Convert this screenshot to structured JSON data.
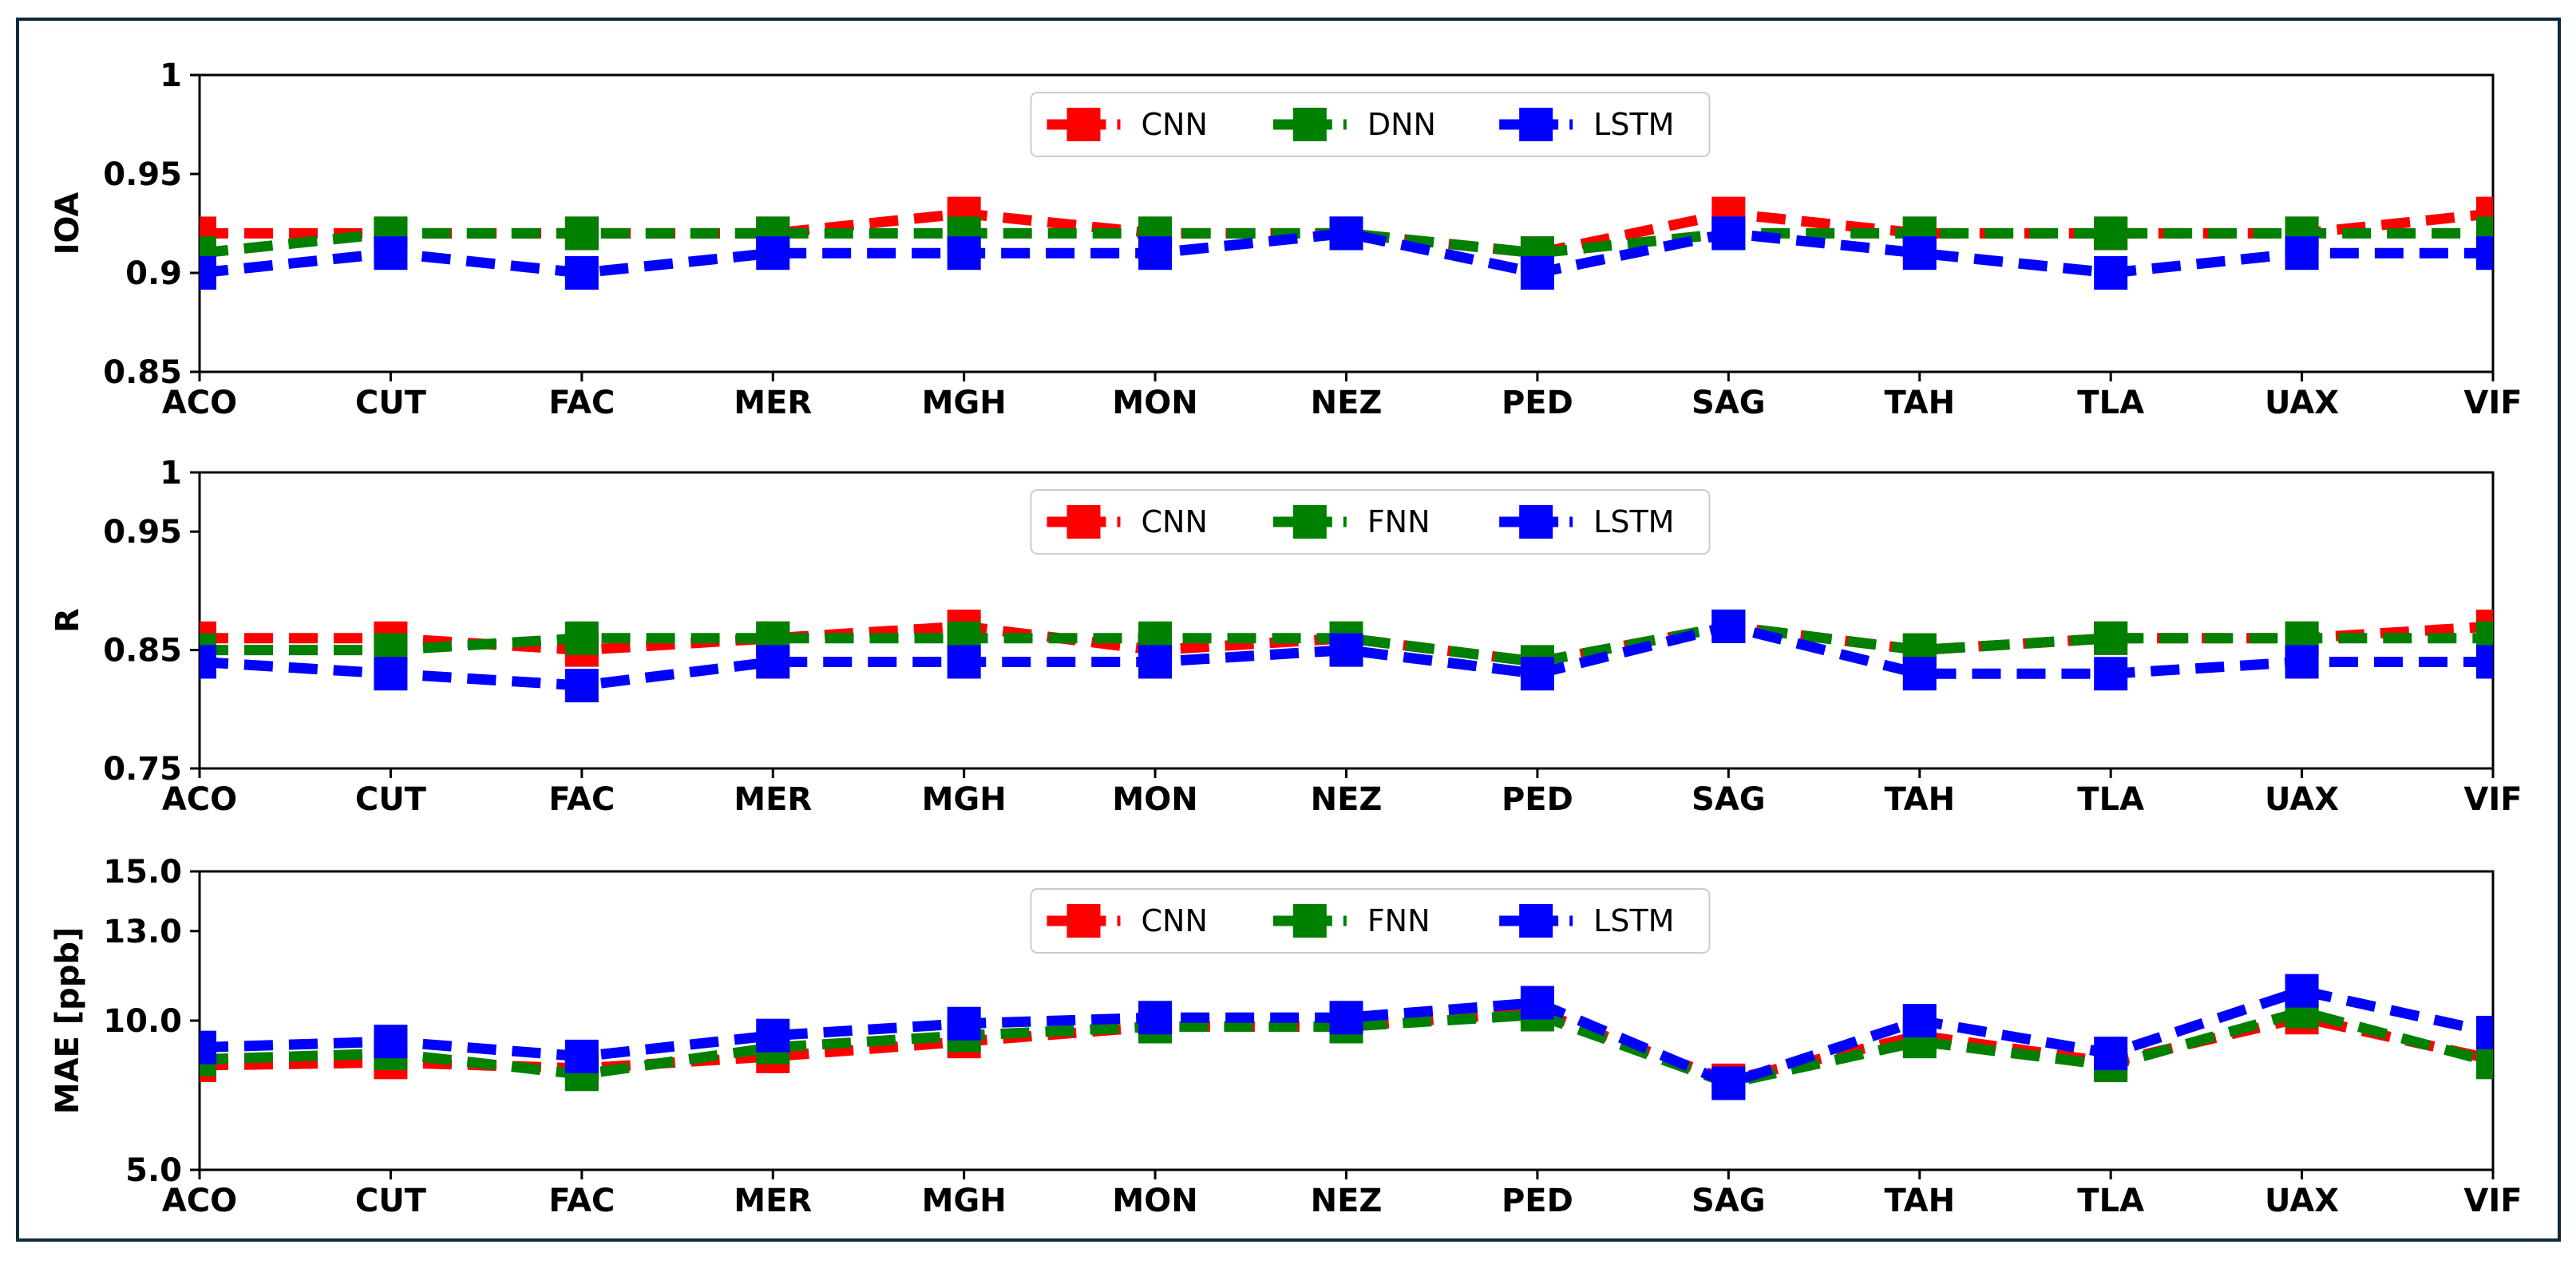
{
  "figure": {
    "border_color": "#0d2a3a",
    "colors": {
      "CNN": "#ff0000",
      "DNN": "#008000",
      "FNN": "#008000",
      "LSTM": "#0000ff"
    }
  },
  "chart_data": [
    {
      "type": "line",
      "ylabel": "IOA",
      "ylim": [
        0.85,
        1
      ],
      "y_scale": "linear",
      "yticks": [
        "0.85",
        "0.9",
        "0.95",
        "1"
      ],
      "ytick_values": [
        0.85,
        0.9,
        0.95,
        1
      ],
      "categories": [
        "ACO",
        "CUT",
        "FAC",
        "MER",
        "MGH",
        "MON",
        "NEZ",
        "PED",
        "SAG",
        "TAH",
        "TLA",
        "UAX",
        "VIF"
      ],
      "legend_position": "top-center",
      "grid": false,
      "series": [
        {
          "name": "CNN",
          "color": "#ff0000",
          "values": [
            0.92,
            0.92,
            0.92,
            0.92,
            0.93,
            0.92,
            0.92,
            0.91,
            0.93,
            0.92,
            0.92,
            0.92,
            0.93
          ]
        },
        {
          "name": "DNN",
          "color": "#008000",
          "values": [
            0.91,
            0.92,
            0.92,
            0.92,
            0.92,
            0.92,
            0.92,
            0.91,
            0.92,
            0.92,
            0.92,
            0.92,
            0.92
          ]
        },
        {
          "name": "LSTM",
          "color": "#0000ff",
          "values": [
            0.9,
            0.91,
            0.9,
            0.91,
            0.91,
            0.91,
            0.92,
            0.9,
            0.92,
            0.91,
            0.9,
            0.91,
            0.91
          ]
        }
      ]
    },
    {
      "type": "line",
      "ylabel": "R",
      "ylim": [
        0.75,
        1
      ],
      "y_scale": "linear",
      "yticks": [
        "0.75",
        "0.85",
        "0.95",
        "1"
      ],
      "ytick_values": [
        0.75,
        0.85,
        0.95,
        1
      ],
      "categories": [
        "ACO",
        "CUT",
        "FAC",
        "MER",
        "MGH",
        "MON",
        "NEZ",
        "PED",
        "SAG",
        "TAH",
        "TLA",
        "UAX",
        "VIF"
      ],
      "legend_position": "top-center",
      "grid": false,
      "series": [
        {
          "name": "CNN",
          "color": "#ff0000",
          "values": [
            0.86,
            0.86,
            0.85,
            0.86,
            0.87,
            0.85,
            0.86,
            0.84,
            0.87,
            0.85,
            0.86,
            0.86,
            0.87
          ]
        },
        {
          "name": "FNN",
          "color": "#008000",
          "values": [
            0.85,
            0.85,
            0.86,
            0.86,
            0.86,
            0.86,
            0.86,
            0.84,
            0.87,
            0.85,
            0.86,
            0.86,
            0.86
          ]
        },
        {
          "name": "LSTM",
          "color": "#0000ff",
          "values": [
            0.84,
            0.83,
            0.82,
            0.84,
            0.84,
            0.84,
            0.85,
            0.83,
            0.87,
            0.83,
            0.83,
            0.84,
            0.84
          ]
        }
      ]
    },
    {
      "type": "line",
      "ylabel": "MAE [ppb]",
      "ylim": [
        5.0,
        15.0
      ],
      "y_scale": "linear",
      "yticks": [
        "5.0",
        "10.0",
        "13.0",
        "15.0"
      ],
      "ytick_values": [
        5.0,
        10.0,
        13.0,
        15.0
      ],
      "categories": [
        "ACO",
        "CUT",
        "FAC",
        "MER",
        "MGH",
        "MON",
        "NEZ",
        "PED",
        "SAG",
        "TAH",
        "TLA",
        "UAX",
        "VIF"
      ],
      "legend_position": "top-center",
      "grid": false,
      "series": [
        {
          "name": "CNN",
          "color": "#ff0000",
          "values": [
            8.5,
            8.6,
            8.4,
            8.8,
            9.3,
            9.8,
            9.8,
            10.3,
            8.0,
            9.5,
            8.6,
            10.1,
            8.7
          ]
        },
        {
          "name": "FNN",
          "color": "#008000",
          "values": [
            8.7,
            8.9,
            8.2,
            9.1,
            9.5,
            9.8,
            9.8,
            10.2,
            7.9,
            9.3,
            8.5,
            10.3,
            8.6
          ]
        },
        {
          "name": "LSTM",
          "color": "#0000ff",
          "values": [
            9.1,
            9.3,
            8.8,
            9.5,
            9.9,
            10.1,
            10.1,
            10.6,
            7.9,
            10.0,
            8.9,
            11.0,
            9.6
          ]
        }
      ]
    }
  ]
}
